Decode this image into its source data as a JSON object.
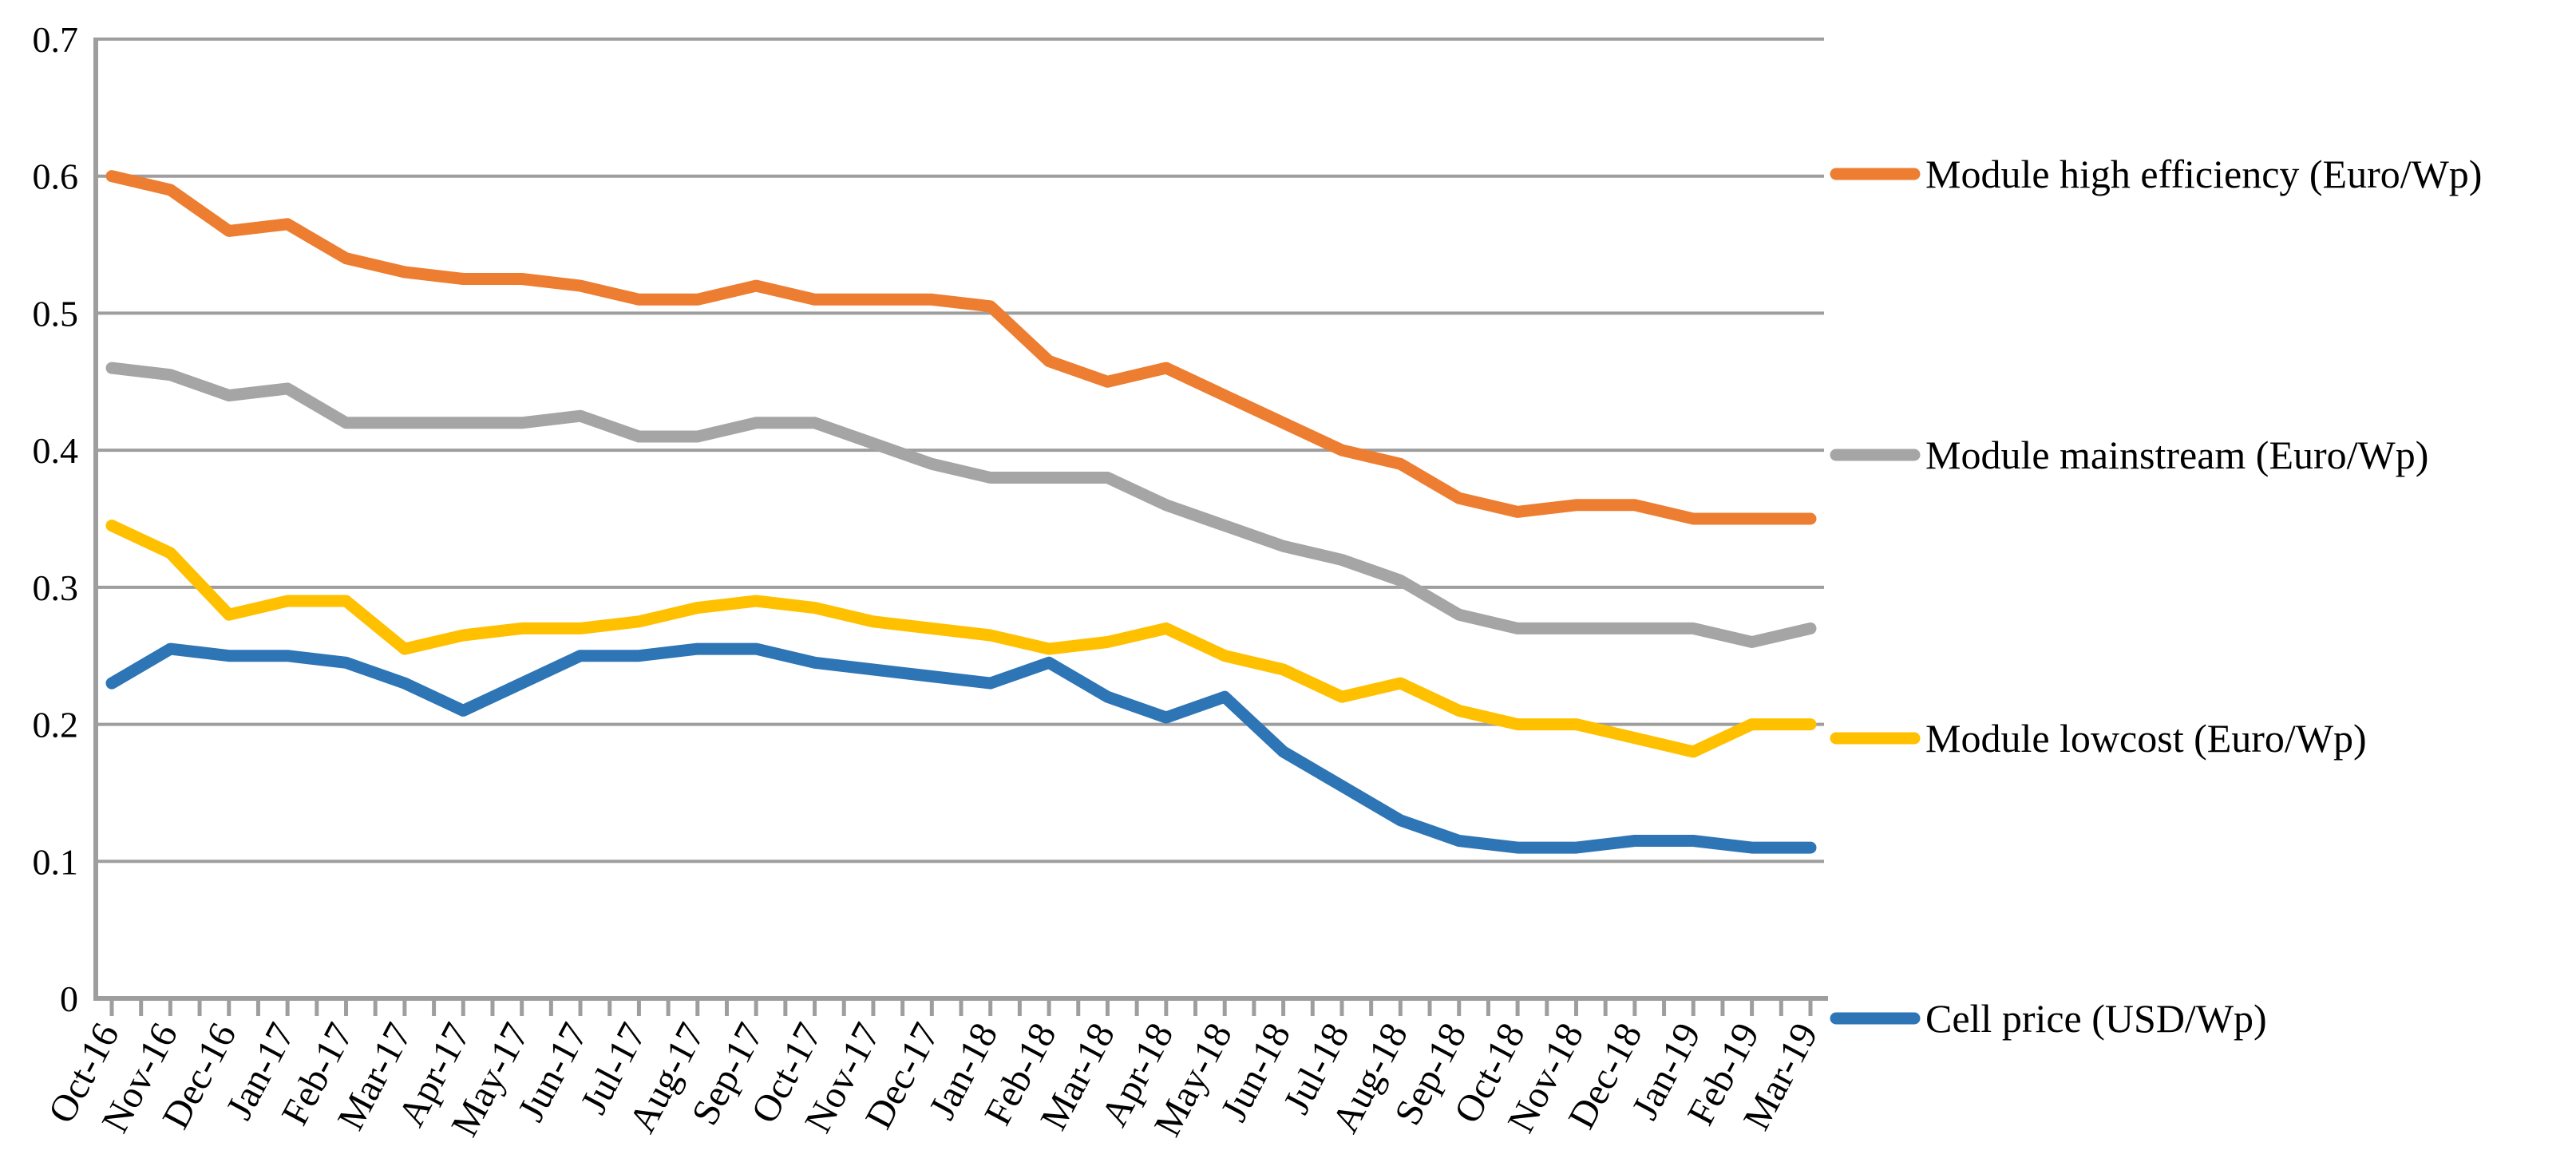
{
  "chart_data": {
    "type": "line",
    "title": "",
    "xlabel": "",
    "ylabel": "",
    "categories": [
      "Oct-16",
      "Nov-16",
      "Dec-16",
      "Jan-17",
      "Feb-17",
      "Mar-17",
      "Apr-17",
      "May-17",
      "Jun-17",
      "Jul-17",
      "Aug-17",
      "Sep-17",
      "Oct-17",
      "Nov-17",
      "Dec-17",
      "Jan-18",
      "Feb-18",
      "Mar-18",
      "Apr-18",
      "May-18",
      "Jun-18",
      "Jul-18",
      "Aug-18",
      "Sep-18",
      "Oct-18",
      "Nov-18",
      "Dec-18",
      "Jan-19",
      "Feb-19",
      "Mar-19"
    ],
    "series": [
      {
        "name": "Module high efficiency (Euro/Wp)",
        "color": "#ED7D31",
        "values": [
          0.6,
          0.59,
          0.56,
          0.565,
          0.54,
          0.53,
          0.525,
          0.525,
          0.52,
          0.51,
          0.51,
          0.52,
          0.51,
          0.51,
          0.51,
          0.505,
          0.465,
          0.45,
          0.46,
          0.44,
          0.42,
          0.4,
          0.39,
          0.365,
          0.355,
          0.36,
          0.36,
          0.35,
          0.35,
          0.35
        ]
      },
      {
        "name": "Module mainstream (Euro/Wp)",
        "color": "#A5A5A5",
        "values": [
          0.46,
          0.455,
          0.44,
          0.445,
          0.42,
          0.42,
          0.42,
          0.42,
          0.425,
          0.41,
          0.41,
          0.42,
          0.42,
          0.405,
          0.39,
          0.38,
          0.38,
          0.38,
          0.36,
          0.345,
          0.33,
          0.32,
          0.305,
          0.28,
          0.27,
          0.27,
          0.27,
          0.27,
          0.26,
          0.27
        ]
      },
      {
        "name": "Module lowcost (Euro/Wp)",
        "color": "#FFC000",
        "values": [
          0.345,
          0.325,
          0.28,
          0.29,
          0.29,
          0.255,
          0.265,
          0.27,
          0.27,
          0.275,
          0.285,
          0.29,
          0.285,
          0.275,
          0.27,
          0.265,
          0.255,
          0.26,
          0.27,
          0.25,
          0.24,
          0.22,
          0.23,
          0.21,
          0.2,
          0.2,
          0.19,
          0.18,
          0.2,
          0.2
        ]
      },
      {
        "name": "Cell price (USD/Wp)",
        "color": "#2E75B6",
        "values": [
          0.23,
          0.255,
          0.25,
          0.25,
          0.245,
          0.23,
          0.21,
          0.23,
          0.25,
          0.25,
          0.255,
          0.255,
          0.245,
          0.24,
          0.235,
          0.23,
          0.245,
          0.22,
          0.205,
          0.22,
          0.18,
          0.155,
          0.13,
          0.115,
          0.11,
          0.11,
          0.115,
          0.115,
          0.11,
          0.11
        ]
      }
    ],
    "ylim": [
      0,
      0.7
    ],
    "ytick_step": 0.1,
    "ytick_labels": [
      "0",
      "0.1",
      "0.2",
      "0.3",
      "0.4",
      "0.5",
      "0.6",
      "0.7"
    ],
    "grid": true,
    "legend_position": "right"
  },
  "colors": {
    "background": "#FFFFFF",
    "gridline": "#9E9E9E",
    "axis": "#9E9E9E",
    "tick": "#9E9E9E",
    "text": "#000000"
  }
}
